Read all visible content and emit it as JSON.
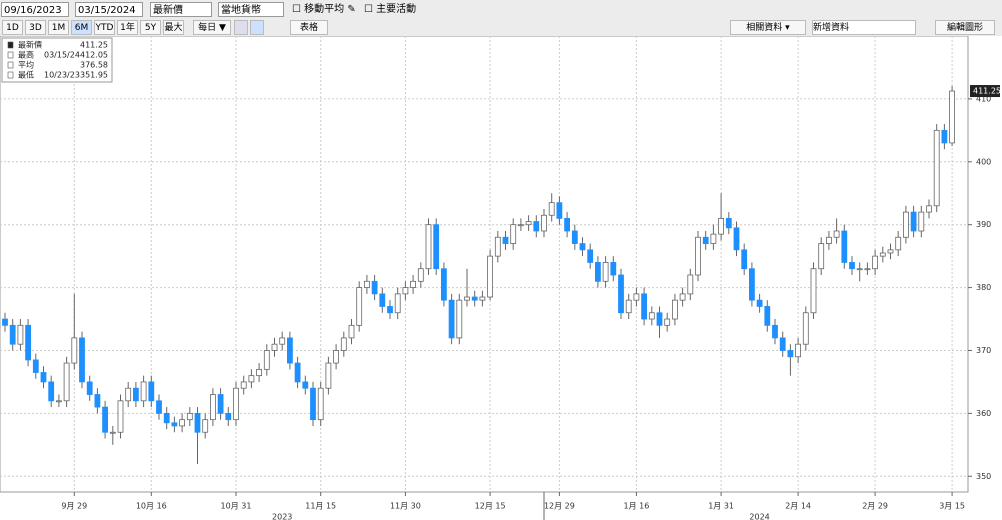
{
  "toolbar": {
    "start_date": "09/16/2023",
    "end_date": "03/15/2024",
    "field": "最新價",
    "currency": "當地貨幣",
    "options": [
      "移動平均",
      "主要活動"
    ],
    "ranges": [
      "1D",
      "3D",
      "1M",
      "6M",
      "YTD",
      "1年",
      "5Y",
      "最大"
    ],
    "period": "每日 ▼",
    "table": "表格",
    "related": "相關資料 ▾",
    "add_data": "新增資料",
    "edit": "編輯圖形"
  },
  "chart_data": {
    "type": "candlestick",
    "categories": [
      null,
      null,
      null,
      null,
      null,
      null,
      null,
      null,
      null,
      "9月 29",
      null,
      null,
      null,
      null,
      null,
      null,
      null,
      null,
      null,
      "10月 16",
      null,
      null,
      null,
      null,
      null,
      null,
      null,
      null,
      null,
      null,
      "10月 31",
      null,
      null,
      null,
      null,
      null,
      null,
      null,
      null,
      null,
      null,
      "11月 15",
      null,
      null,
      null,
      null,
      null,
      null,
      null,
      null,
      null,
      null,
      "11月 30",
      null,
      null,
      null,
      null,
      null,
      null,
      null,
      null,
      null,
      null,
      "12月 15",
      null,
      null,
      null,
      null,
      null,
      null,
      null,
      null,
      "12月 29",
      null,
      null,
      null,
      null,
      null,
      null,
      null,
      null,
      null,
      "1月 16",
      null,
      null,
      null,
      null,
      null,
      null,
      null,
      null,
      null,
      null,
      "1月 31",
      null,
      null,
      null,
      null,
      null,
      null,
      null,
      null,
      null,
      "2月 14",
      null,
      null,
      null,
      null,
      null,
      null,
      null,
      null,
      null,
      "2月 29",
      null,
      null,
      null,
      null,
      null,
      null,
      null,
      null,
      null,
      "3月 15"
    ],
    "open": [
      375,
      374,
      371,
      374,
      368.5,
      366.5,
      365,
      362,
      362,
      368,
      372,
      365,
      363,
      361,
      357,
      357,
      362,
      364,
      362,
      365,
      362,
      360,
      358.5,
      358,
      359,
      360,
      357,
      359,
      363,
      360,
      359,
      364,
      365,
      366,
      367,
      370,
      371,
      372,
      368,
      365,
      364,
      359,
      364,
      368,
      370,
      372,
      374,
      380,
      381,
      379,
      377,
      376,
      379,
      380,
      381,
      383,
      390,
      383,
      378,
      372,
      378,
      378.5,
      378,
      378.5,
      385,
      388,
      387,
      390,
      390,
      390.5,
      389,
      391.5,
      393.5,
      391,
      389,
      387,
      386,
      384,
      381,
      384,
      382,
      376,
      378,
      379,
      375,
      376,
      374,
      375,
      378,
      379,
      382,
      388,
      387,
      388.5,
      391,
      389.5,
      386,
      383,
      378,
      377,
      374,
      372,
      370,
      369,
      371,
      376,
      383,
      387,
      388,
      389,
      384,
      383,
      383,
      383,
      385,
      385.5,
      386,
      388,
      392,
      389,
      392,
      393,
      405,
      403
    ],
    "high": [
      376,
      375,
      375,
      375,
      369.5,
      367.5,
      366,
      363,
      369,
      379,
      373,
      366,
      364,
      362,
      358,
      363,
      365,
      365,
      366,
      366,
      363,
      361,
      359.5,
      360,
      361,
      361,
      360,
      364,
      364,
      361,
      365,
      366,
      367,
      368,
      371,
      372,
      373,
      373,
      369,
      366,
      365,
      365,
      369,
      371,
      373,
      375,
      381,
      382,
      382,
      380,
      378,
      380,
      381,
      382,
      384,
      391,
      391,
      384,
      379,
      379,
      383,
      379.5,
      379.5,
      386,
      389,
      389,
      391,
      391,
      391.5,
      391.5,
      392.5,
      395,
      394.5,
      392,
      390,
      388,
      387,
      385,
      385,
      385,
      383,
      379,
      380,
      380,
      377,
      377,
      376,
      379,
      380,
      383,
      389,
      389,
      390,
      395,
      392,
      390.5,
      387,
      384,
      379,
      378,
      375,
      373,
      371,
      372,
      377,
      384,
      388,
      389,
      391,
      390,
      385,
      384,
      384,
      386,
      386.5,
      387,
      389,
      393,
      393,
      393,
      394,
      406,
      406,
      412.05
    ],
    "low": [
      373,
      370,
      370,
      367.5,
      365.5,
      364,
      361,
      361,
      361,
      367,
      364,
      362,
      360,
      356,
      355,
      356,
      361,
      361,
      361,
      361,
      359,
      357.5,
      357,
      357,
      358,
      351.95,
      356,
      358,
      359,
      358,
      358,
      363,
      364,
      365,
      366,
      369,
      370,
      367,
      364,
      363,
      358,
      358,
      363,
      367,
      369,
      371,
      373,
      379,
      378,
      376,
      375,
      375,
      378,
      379,
      380,
      382,
      382,
      377,
      371,
      371,
      377,
      377,
      377,
      378,
      384,
      386,
      386,
      389,
      389,
      388,
      388,
      390.5,
      390,
      388,
      386,
      385,
      383,
      380,
      380,
      381,
      375,
      375,
      377,
      374,
      374,
      372,
      373,
      374,
      377,
      378,
      381,
      386,
      386,
      387.5,
      388.5,
      385,
      382,
      377,
      376,
      373,
      371,
      369,
      366,
      368,
      370,
      375,
      382,
      386,
      387,
      383,
      382,
      381,
      382,
      382,
      384,
      384.5,
      385,
      387,
      388,
      388,
      391,
      392,
      402,
      402.5
    ],
    "close": [
      374,
      371,
      374,
      368.5,
      366.5,
      365,
      362,
      362,
      368,
      372,
      365,
      363,
      361,
      357,
      357,
      362,
      364,
      362,
      365,
      362,
      360,
      358.5,
      358,
      359,
      360,
      357,
      359,
      363,
      360,
      359,
      364,
      365,
      366,
      367,
      370,
      371,
      372,
      368,
      365,
      364,
      359,
      364,
      368,
      370,
      372,
      374,
      380,
      381,
      379,
      377,
      376,
      379,
      380,
      381,
      383,
      390,
      383,
      378,
      372,
      378,
      378.5,
      378,
      378.5,
      385,
      388,
      387,
      390,
      390,
      390.5,
      389,
      391.5,
      393.5,
      391,
      389,
      387,
      386,
      384,
      381,
      384,
      382,
      376,
      378,
      379,
      375,
      376,
      374,
      375,
      378,
      379,
      382,
      388,
      387,
      388.5,
      391,
      389.5,
      386,
      383,
      378,
      377,
      374,
      372,
      370,
      369,
      371,
      376,
      383,
      387,
      388,
      389,
      384,
      383,
      383,
      383,
      385,
      385.5,
      386,
      388,
      392,
      389,
      392,
      393,
      405,
      403,
      411.25
    ],
    "ylim": [
      347.5,
      420
    ],
    "yticks": [
      350,
      360,
      370,
      380,
      390,
      400,
      410
    ],
    "grid": true,
    "up_color": "#ffffff",
    "down_color": "#1e8fff",
    "years": [
      "2023",
      "2024"
    ],
    "legend": [
      {
        "name": "最新價",
        "value": 411.25
      },
      {
        "name": "最高",
        "date": "03/15/24",
        "value": 412.05
      },
      {
        "name": "平均",
        "value": 376.58
      },
      {
        "name": "最低",
        "date": "10/23/23",
        "value": 351.95
      }
    ]
  }
}
